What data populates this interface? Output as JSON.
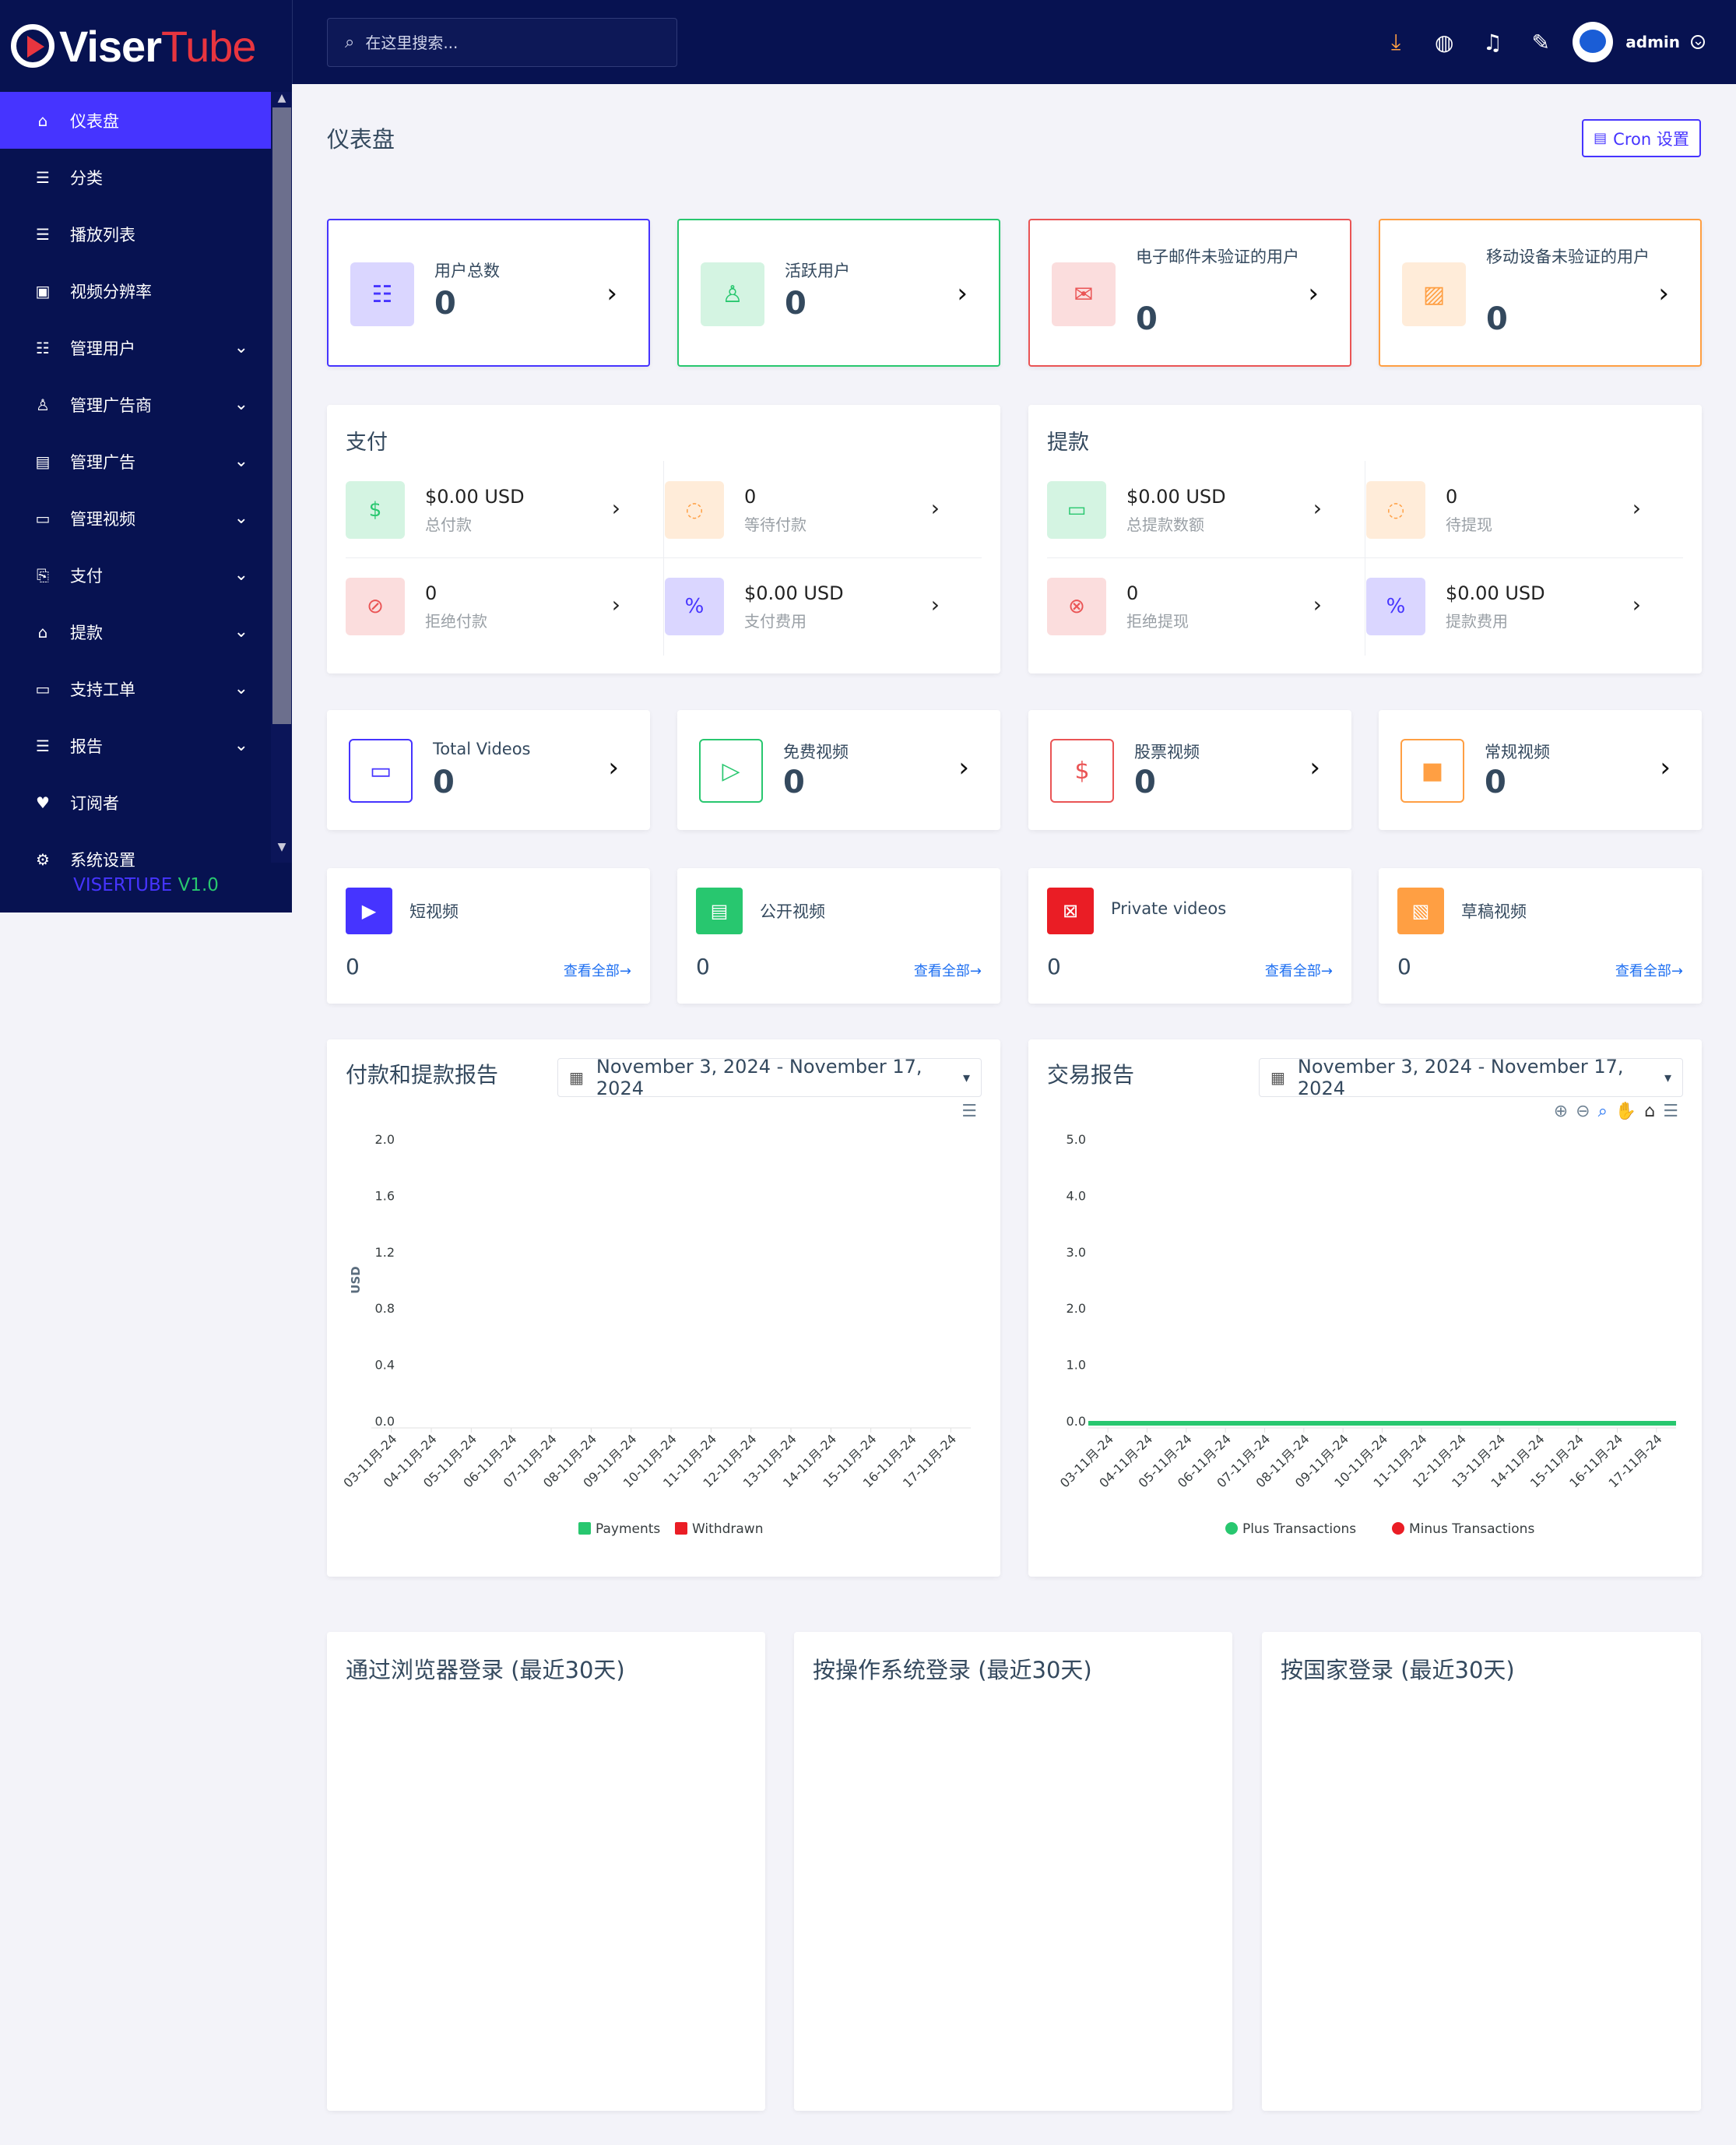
{
  "logo": {
    "part1": "Viser",
    "part2": "Tube"
  },
  "version": {
    "name": "VISERTUBE",
    "number": "V1.0"
  },
  "sidebar": {
    "items": [
      {
        "label": "仪表盘",
        "icon": "home-icon",
        "glyph": "⌂",
        "active": true,
        "expandable": false
      },
      {
        "label": "分类",
        "icon": "list-icon",
        "glyph": "☰",
        "active": false,
        "expandable": false
      },
      {
        "label": "播放列表",
        "icon": "playlist-icon",
        "glyph": "☰",
        "active": false,
        "expandable": false
      },
      {
        "label": "视频分辨率",
        "icon": "resolution-icon",
        "glyph": "▣",
        "active": false,
        "expandable": false
      },
      {
        "label": "管理用户",
        "icon": "users-icon",
        "glyph": "☷",
        "active": false,
        "expandable": true
      },
      {
        "label": "管理广告商",
        "icon": "user-icon",
        "glyph": "♙",
        "active": false,
        "expandable": true
      },
      {
        "label": "管理广告",
        "icon": "ad-icon",
        "glyph": "▤",
        "active": false,
        "expandable": true
      },
      {
        "label": "管理视频",
        "icon": "video-icon",
        "glyph": "▭",
        "active": false,
        "expandable": true
      },
      {
        "label": "支付",
        "icon": "payment-icon",
        "glyph": "⎘",
        "active": false,
        "expandable": true
      },
      {
        "label": "提款",
        "icon": "bank-icon",
        "glyph": "⌂",
        "active": false,
        "expandable": true
      },
      {
        "label": "支持工单",
        "icon": "ticket-icon",
        "glyph": "▭",
        "active": false,
        "expandable": true
      },
      {
        "label": "报告",
        "icon": "report-icon",
        "glyph": "☰",
        "active": false,
        "expandable": true
      },
      {
        "label": "订阅者",
        "icon": "thumbs-up-icon",
        "glyph": "♥",
        "active": false,
        "expandable": false
      },
      {
        "label": "系统设置",
        "icon": "settings-icon",
        "glyph": "⚙",
        "active": false,
        "expandable": false
      }
    ]
  },
  "header": {
    "search_placeholder": "在这里搜索...",
    "admin_name": "admin"
  },
  "page": {
    "title": "仪表盘",
    "cron_label": "Cron 设置"
  },
  "user_stats": [
    {
      "label": "用户总数",
      "value": "0",
      "color": "#4634ff",
      "bg": "#dad6ff",
      "icon": "users-icon",
      "glyph": "☷"
    },
    {
      "label": "活跃用户",
      "value": "0",
      "color": "#28c76f",
      "bg": "#d4f4e2",
      "icon": "user-check-icon",
      "glyph": "♙"
    },
    {
      "label": "电子邮件未验证的用户",
      "value": "0",
      "color": "#ea5455",
      "bg": "#fbdddd",
      "icon": "envelope-icon",
      "glyph": "✉"
    },
    {
      "label": "移动设备未验证的用户",
      "value": "0",
      "color": "#ff9f43",
      "bg": "#ffecd9",
      "icon": "mobile-off-icon",
      "glyph": "▨"
    }
  ],
  "payments": {
    "title": "支付",
    "cells": [
      {
        "value": "$0.00 USD",
        "label": "总付款",
        "icon": "hand-money-icon",
        "glyph": "$",
        "color": "#28c76f",
        "bg": "#d4f4e2"
      },
      {
        "value": "0",
        "label": "等待付款",
        "icon": "spinner-icon",
        "glyph": "◌",
        "color": "#ff9f43",
        "bg": "#ffecd9"
      },
      {
        "value": "0",
        "label": "拒绝付款",
        "icon": "ban-icon",
        "glyph": "⊘",
        "color": "#ea5455",
        "bg": "#fbdddd"
      },
      {
        "value": "$0.00 USD",
        "label": "支付费用",
        "icon": "percent-icon",
        "glyph": "%",
        "color": "#4634ff",
        "bg": "#dad6ff"
      }
    ]
  },
  "withdrawals": {
    "title": "提款",
    "cells": [
      {
        "value": "$0.00 USD",
        "label": "总提款数额",
        "icon": "credit-card-icon",
        "glyph": "▭",
        "color": "#28c76f",
        "bg": "#d4f4e2"
      },
      {
        "value": "0",
        "label": "待提现",
        "icon": "spinner-icon",
        "glyph": "◌",
        "color": "#ff9f43",
        "bg": "#ffecd9"
      },
      {
        "value": "0",
        "label": "拒绝提现",
        "icon": "x-circle-icon",
        "glyph": "⊗",
        "color": "#ea5455",
        "bg": "#fbdddd"
      },
      {
        "value": "$0.00 USD",
        "label": "提款费用",
        "icon": "percent-icon",
        "glyph": "%",
        "color": "#4634ff",
        "bg": "#dad6ff"
      }
    ]
  },
  "video_stats": [
    {
      "label": "Total Videos",
      "value": "0",
      "color": "#4634ff",
      "icon": "video-camera-icon",
      "glyph": "▭"
    },
    {
      "label": "免费视频",
      "value": "0",
      "color": "#28c76f",
      "icon": "file-play-icon",
      "glyph": "▷"
    },
    {
      "label": "股票视频",
      "value": "0",
      "color": "#ea5455",
      "icon": "hand-dollar-icon",
      "glyph": "$"
    },
    {
      "label": "常规视频",
      "value": "0",
      "color": "#ff9f43",
      "icon": "camera-icon",
      "glyph": "■"
    }
  ],
  "video_types": [
    {
      "label": "短视频",
      "value": "0",
      "link": "查看全部→",
      "color": "#4634ff",
      "icon": "play-icon",
      "glyph": "▶"
    },
    {
      "label": "公开视频",
      "value": "0",
      "link": "查看全部→",
      "color": "#28c76f",
      "icon": "file-icon",
      "glyph": "▤"
    },
    {
      "label": "Private videos",
      "value": "0",
      "link": "查看全部→",
      "color": "#ea1d25",
      "icon": "video-slash-icon",
      "glyph": "⊠"
    },
    {
      "label": "草稿视频",
      "value": "0",
      "link": "查看全部→",
      "color": "#ff9f43",
      "icon": "images-icon",
      "glyph": "▧"
    }
  ],
  "date_range": "November 3, 2024 - November 17, 2024",
  "chart_data": [
    {
      "type": "bar",
      "title": "付款和提款报告",
      "ylabel": "USD",
      "xlabel": "",
      "ylim": [
        0,
        2.0
      ],
      "yticks": [
        "0.0",
        "0.4",
        "0.8",
        "1.2",
        "1.6",
        "2.0"
      ],
      "categories": [
        "03-11月-24",
        "04-11月-24",
        "05-11月-24",
        "06-11月-24",
        "07-11月-24",
        "08-11月-24",
        "09-11月-24",
        "10-11月-24",
        "11-11月-24",
        "12-11月-24",
        "13-11月-24",
        "14-11月-24",
        "15-11月-24",
        "16-11月-24",
        "17-11月-24"
      ],
      "series": [
        {
          "name": "Payments",
          "color": "#28c76f",
          "values": [
            0,
            0,
            0,
            0,
            0,
            0,
            0,
            0,
            0,
            0,
            0,
            0,
            0,
            0,
            0
          ]
        },
        {
          "name": "Withdrawn",
          "color": "#ea1d25",
          "values": [
            0,
            0,
            0,
            0,
            0,
            0,
            0,
            0,
            0,
            0,
            0,
            0,
            0,
            0,
            0
          ]
        }
      ],
      "legend": "bottom",
      "grid": false
    },
    {
      "type": "line",
      "title": "交易报告",
      "ylabel": "",
      "xlabel": "",
      "ylim": [
        0,
        5.0
      ],
      "yticks": [
        "0.0",
        "1.0",
        "2.0",
        "3.0",
        "4.0",
        "5.0"
      ],
      "categories": [
        "03-11月-24",
        "04-11月-24",
        "05-11月-24",
        "06-11月-24",
        "07-11月-24",
        "08-11月-24",
        "09-11月-24",
        "10-11月-24",
        "11-11月-24",
        "12-11月-24",
        "13-11月-24",
        "14-11月-24",
        "15-11月-24",
        "16-11月-24",
        "17-11月-24"
      ],
      "series": [
        {
          "name": "Plus Transactions",
          "color": "#28c76f",
          "values": [
            0,
            0,
            0,
            0,
            0,
            0,
            0,
            0,
            0,
            0,
            0,
            0,
            0,
            0,
            0
          ]
        },
        {
          "name": "Minus Transactions",
          "color": "#ea1d25",
          "values": [
            0,
            0,
            0,
            0,
            0,
            0,
            0,
            0,
            0,
            0,
            0,
            0,
            0,
            0,
            0
          ]
        }
      ],
      "legend": "bottom",
      "grid": false
    }
  ],
  "bottom_cards": [
    {
      "title": "通过浏览器登录 (最近30天)"
    },
    {
      "title": "按操作系统登录 (最近30天)"
    },
    {
      "title": "按国家登录 (最近30天)"
    }
  ]
}
